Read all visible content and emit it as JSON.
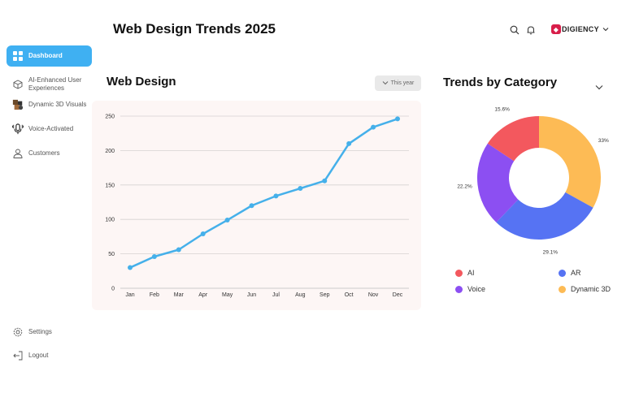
{
  "header": {
    "title": "Web Design Trends 2025",
    "brand": "DIGIENCY"
  },
  "sidebar": {
    "items": [
      {
        "label": "Dashboard",
        "icon": "grid-icon",
        "active": true
      },
      {
        "label": "AI-Enhanced User Experiences",
        "icon": "cube-icon",
        "active": false
      },
      {
        "label": "Dynamic 3D Visuals",
        "icon": "3d-visual-icon",
        "active": false
      },
      {
        "label": "Voice-Activated",
        "icon": "microphone-icon",
        "active": false
      },
      {
        "label": "Customers",
        "icon": "user-icon",
        "active": false
      }
    ],
    "bottom": [
      {
        "label": "Settings",
        "icon": "gear-icon"
      },
      {
        "label": "Logout",
        "icon": "logout-icon"
      }
    ]
  },
  "main": {
    "chart_title": "Web Design",
    "period_label": "This year",
    "category_title": "Trends by Category"
  },
  "colors": {
    "accent": "#3fb0f2",
    "line": "#45b0ea",
    "ai": "#f3585e",
    "ar": "#5673f3",
    "voice": "#8c4ff2",
    "dynamic3d": "#fdbb55"
  },
  "chart_data": [
    {
      "type": "line",
      "title": "Web Design",
      "categories": [
        "Jan",
        "Feb",
        "Mar",
        "Apr",
        "May",
        "Jun",
        "Jul",
        "Aug",
        "Sep",
        "Oct",
        "Nov",
        "Dec"
      ],
      "values": [
        30,
        46,
        56,
        79,
        99,
        120,
        134,
        145,
        156,
        210,
        234,
        246
      ],
      "yticks": [
        0,
        50,
        100,
        150,
        200,
        250
      ],
      "ylim": [
        0,
        250
      ],
      "grid": true
    },
    {
      "type": "pie",
      "title": "Trends by Category",
      "labels": [
        "AI",
        "AR",
        "Voice",
        "Dynamic 3D"
      ],
      "values": [
        15.6,
        29.1,
        22.2,
        33
      ],
      "value_labels": [
        "15.6%",
        "29.1%",
        "22.2%",
        "33%"
      ],
      "legend": "bottom"
    }
  ]
}
